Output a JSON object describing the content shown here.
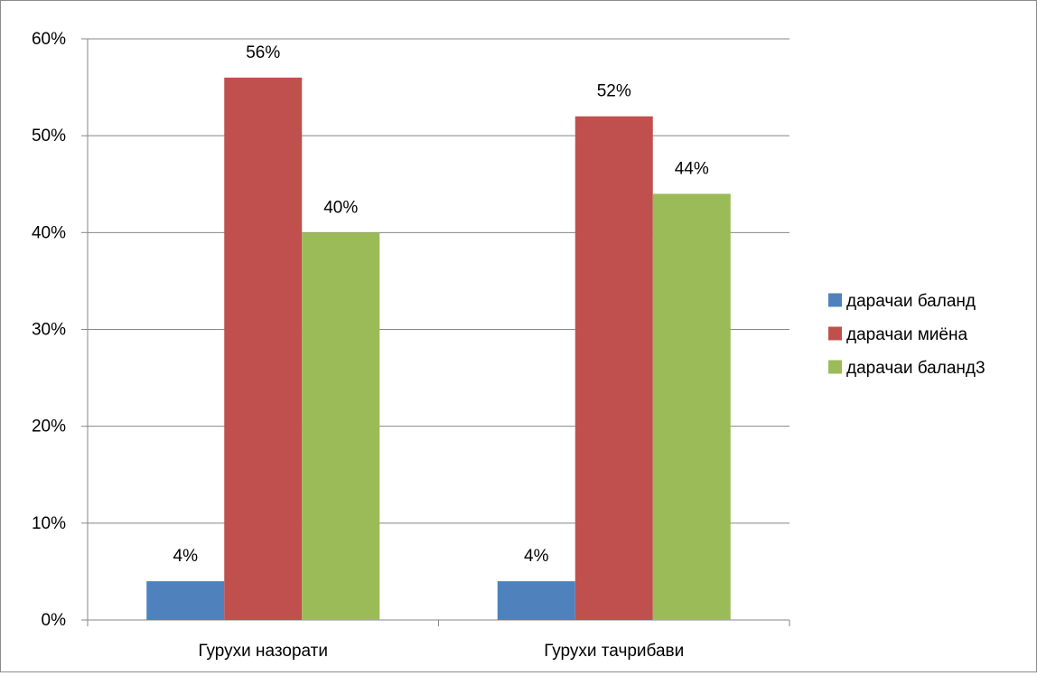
{
  "chart_data": {
    "type": "bar",
    "categories": [
      "Гурухи назорати",
      "Гурухи тачрибави"
    ],
    "series": [
      {
        "name": "дарачаи баланд",
        "values": [
          4,
          4
        ],
        "labels": [
          "4%",
          "4%"
        ],
        "color": "#4F81BD"
      },
      {
        "name": "дарачаи миёна",
        "values": [
          56,
          52
        ],
        "labels": [
          "56%",
          "52%"
        ],
        "color": "#C0504D"
      },
      {
        "name": "дарачаи баланд3",
        "values": [
          40,
          44
        ],
        "labels": [
          "40%",
          "44%"
        ],
        "color": "#9BBB59"
      }
    ],
    "ylim": [
      0,
      60
    ],
    "yticks": [
      0,
      10,
      20,
      30,
      40,
      50,
      60
    ],
    "ytick_labels": [
      "0%",
      "10%",
      "20%",
      "30%",
      "40%",
      "50%",
      "60%"
    ],
    "grid": true,
    "legend_position": "right",
    "title": "",
    "xlabel": "",
    "ylabel": ""
  }
}
